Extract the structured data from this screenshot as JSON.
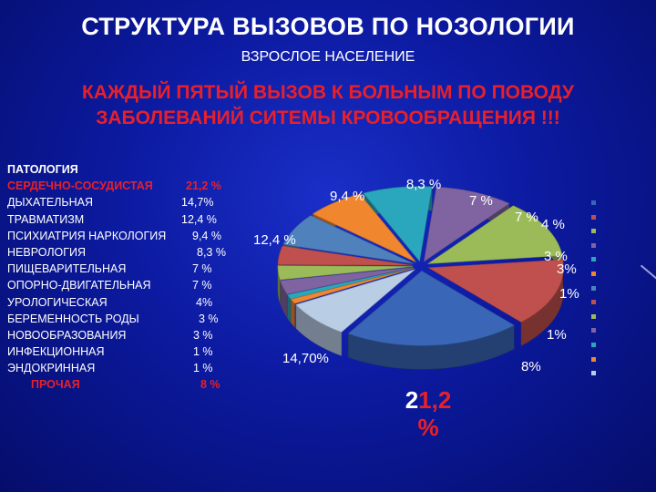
{
  "title": "СТРУКТУРА ВЫЗОВОВ ПО НОЗОЛОГИИ",
  "subtitle": "ВЗРОСЛОЕ НАСЕЛЕНИЕ",
  "headline_line1": "КАЖДЫЙ ПЯТЫЙ ВЫЗОВ К БОЛЬНЫМ ПО ПОВОДУ",
  "headline_line2": "ЗАБОЛЕВАНИЙ СИТЕМЫ КРОВООБРАЩЕНИЯ !!!",
  "legend": {
    "header": "ПАТОЛОГИЯ",
    "rows": [
      {
        "name": "СЕРДЕЧНО-СОСУДИСТАЯ",
        "value": "21,2 %"
      },
      {
        "name": "ДЫХАТЕЛЬНАЯ",
        "value": "14,7%"
      },
      {
        "name": "ТРАВМАТИЗМ",
        "value": "12,4 %"
      },
      {
        "name": "ПСИХИАТРИЯ НАРКОЛОГИЯ",
        "value": "9,4 %"
      },
      {
        "name": "НЕВРОЛОГИЯ",
        "value": "8,3 %"
      },
      {
        "name": "ПИЩЕВАРИТЕЛЬНАЯ",
        "value": "7 %"
      },
      {
        "name": "ОПОРНО-ДВИГАТЕЛЬНАЯ",
        "value": "7 %"
      },
      {
        "name": "УРОЛОГИЧЕСКАЯ",
        "value": "4%"
      },
      {
        "name": "БЕРЕМЕННОСТЬ РОДЫ",
        "value": "3 %"
      },
      {
        "name": "НОВООБРАЗОВАНИЯ",
        "value": "3 %"
      },
      {
        "name": "ИНФЕКЦИОННАЯ",
        "value": "1 %"
      },
      {
        "name": "ЭНДОКРИННАЯ",
        "value": "1 %"
      },
      {
        "name": "ПРОЧАЯ",
        "value": "8 %"
      }
    ]
  },
  "chart_data": {
    "type": "pie",
    "style": "3d-exploded",
    "slices": [
      {
        "value": 21.2,
        "label": "21,2 %",
        "color": "#3a66b8"
      },
      {
        "value": 14.7,
        "label": "14,70%",
        "color": "#c0504d"
      },
      {
        "value": 12.4,
        "label": "12,4 %",
        "color": "#9bbb59"
      },
      {
        "value": 9.4,
        "label": "9,4 %",
        "color": "#8064a2"
      },
      {
        "value": 8.3,
        "label": "8,3 %",
        "color": "#2aa7bd"
      },
      {
        "value": 7.0,
        "label": "7 %",
        "color": "#f0862e"
      },
      {
        "value": 7.0,
        "label": "7 %",
        "color": "#4f81bd"
      },
      {
        "value": 4.0,
        "label": "4 %",
        "color": "#c0504d"
      },
      {
        "value": 3.0,
        "label": "3 %",
        "color": "#9bbb59"
      },
      {
        "value": 3.0,
        "label": "3%",
        "color": "#8064a2"
      },
      {
        "value": 1.0,
        "label": "1%",
        "color": "#2aa7bd"
      },
      {
        "value": 1.0,
        "label": "1%",
        "color": "#f0862e"
      },
      {
        "value": 8.0,
        "label": "8%",
        "color": "#b9cde5"
      }
    ]
  }
}
